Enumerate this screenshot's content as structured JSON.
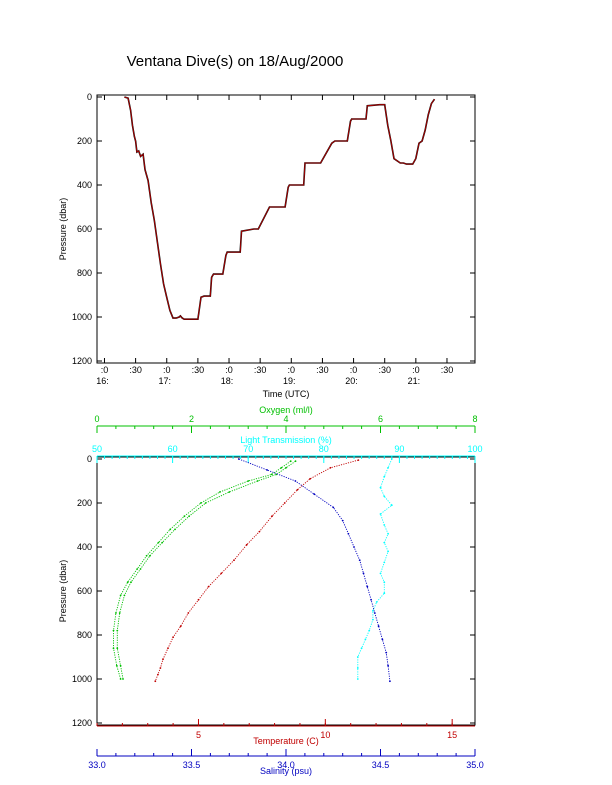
{
  "title": "Ventana Dive(s) on 18/Aug/2000",
  "chart_data": [
    {
      "type": "line",
      "xlabel": "Time (UTC)",
      "ylabel": "Pressure (dbar)",
      "ylim": [
        1200,
        0
      ],
      "yticks": [
        "0",
        "200",
        "400",
        "600",
        "800",
        "1000",
        "1200"
      ],
      "xticks": [
        {
          "minute": ":0",
          "hour": "16:"
        },
        {
          "minute": ":30",
          "hour": ""
        },
        {
          "minute": ":0",
          "hour": "17:"
        },
        {
          "minute": ":30",
          "hour": ""
        },
        {
          "minute": ":0",
          "hour": "18:"
        },
        {
          "minute": ":30",
          "hour": ""
        },
        {
          "minute": ":0",
          "hour": "19:"
        },
        {
          "minute": ":30",
          "hour": ""
        },
        {
          "minute": ":0",
          "hour": "20:"
        },
        {
          "minute": ":30",
          "hour": ""
        },
        {
          "minute": ":0",
          "hour": "21:"
        },
        {
          "minute": ":30",
          "hour": ""
        }
      ],
      "series": [
        {
          "color": "#c00000",
          "x": [
            16.32,
            16.38,
            16.42,
            16.45,
            16.48,
            16.5,
            16.52,
            16.55,
            16.58,
            16.62,
            16.65,
            16.7,
            16.75,
            16.8,
            16.85,
            16.9,
            16.95,
            17.0,
            17.05,
            17.1,
            17.15,
            17.2,
            17.22,
            17.25,
            17.28,
            17.35,
            17.4,
            17.45,
            17.5,
            17.55,
            17.6,
            17.65,
            17.7,
            17.72,
            17.75,
            17.78,
            17.9,
            17.95,
            17.97,
            18.15,
            18.18,
            18.2,
            18.4,
            18.45,
            18.47,
            18.65,
            18.7,
            18.72,
            18.9,
            18.95,
            18.97,
            19.15,
            19.2,
            19.22,
            19.4,
            19.45,
            19.47,
            19.65,
            19.7,
            19.72,
            19.9,
            19.95,
            19.97,
            20.15,
            20.2,
            20.22,
            20.42,
            20.45,
            20.5,
            20.55,
            20.6,
            20.65,
            20.75,
            20.8,
            20.85,
            20.9,
            20.95,
            21.0,
            21.05,
            21.1,
            21.15,
            21.2,
            21.25,
            21.3
          ],
          "y": [
            0,
            5,
            60,
            130,
            180,
            200,
            250,
            245,
            270,
            260,
            330,
            380,
            480,
            560,
            660,
            760,
            850,
            910,
            970,
            1005,
            1005,
            1000,
            995,
            1005,
            1010,
            1010,
            1010,
            1010,
            1010,
            910,
            905,
            905,
            905,
            820,
            805,
            805,
            805,
            720,
            705,
            705,
            705,
            610,
            600,
            600,
            600,
            500,
            500,
            500,
            500,
            410,
            400,
            400,
            400,
            300,
            300,
            300,
            300,
            210,
            200,
            200,
            200,
            110,
            100,
            100,
            100,
            40,
            35,
            35,
            35,
            130,
            200,
            280,
            300,
            300,
            305,
            305,
            305,
            280,
            210,
            200,
            150,
            80,
            30,
            10
          ]
        }
      ]
    },
    {
      "type": "scatter",
      "ylabel": "Pressure (dbar)",
      "ylim": [
        1200,
        0
      ],
      "yticks": [
        "0",
        "200",
        "400",
        "600",
        "800",
        "1000",
        "1200"
      ],
      "axes": [
        {
          "label": "Oxygen (ml/l)",
          "position": "top",
          "color": "#00c000",
          "min": 0,
          "max": 8,
          "ticks": [
            "0",
            "2",
            "4",
            "6",
            "8"
          ],
          "tickvals": [
            0,
            2,
            4,
            6,
            8
          ]
        },
        {
          "label": "Light Transmission (%)",
          "position": "top",
          "color": "#00ffff",
          "min": 50,
          "max": 100,
          "ticks": [
            "50",
            "60",
            "70",
            "80",
            "90",
            "100"
          ],
          "tickvals": [
            50,
            60,
            70,
            80,
            90,
            100
          ]
        },
        {
          "label": "Temperature (C)",
          "position": "bottom",
          "color": "#c00000",
          "min": 1,
          "max": 15.9,
          "ticks": [
            "5",
            "10",
            "15"
          ],
          "tickvals": [
            5,
            10,
            15
          ]
        },
        {
          "label": "Salinity (psu)",
          "position": "bottom",
          "color": "#0000c0",
          "min": 33.0,
          "max": 35.0,
          "ticks": [
            "33.0",
            "33.5",
            "34.0",
            "34.5",
            "35.0"
          ],
          "tickvals": [
            33.0,
            33.5,
            34.0,
            34.5,
            35.0
          ]
        }
      ],
      "series": [
        {
          "axis": 0,
          "color": "#00c000",
          "x": [
            4.1,
            3.9,
            3.7,
            3.2,
            2.6,
            2.2,
            1.85,
            1.55,
            1.3,
            1.05,
            0.85,
            0.65,
            0.5,
            0.4,
            0.35,
            0.35,
            0.42,
            0.5
          ],
          "y": [
            10,
            40,
            70,
            100,
            150,
            200,
            260,
            320,
            380,
            440,
            500,
            560,
            620,
            700,
            780,
            860,
            940,
            1000
          ],
          "x2": [
            4.2,
            4.0,
            3.8,
            3.4,
            2.8,
            2.3,
            1.95,
            1.65,
            1.38,
            1.12,
            0.92,
            0.72,
            0.58,
            0.48,
            0.43,
            0.43,
            0.5,
            0.55
          ],
          "y2": [
            10,
            40,
            70,
            100,
            150,
            200,
            260,
            320,
            380,
            440,
            500,
            560,
            620,
            700,
            780,
            860,
            940,
            1000
          ]
        },
        {
          "axis": 1,
          "color": "#00ffff",
          "x": [
            89,
            88.5,
            88,
            87.5,
            88,
            89,
            87.5,
            88,
            88.5,
            88,
            88.5,
            88,
            87.5,
            88,
            88,
            87,
            86.5,
            86.5,
            86,
            85.5,
            85,
            84.5,
            84.5,
            84.5
          ],
          "y": [
            0,
            40,
            80,
            130,
            170,
            210,
            250,
            300,
            340,
            380,
            420,
            470,
            520,
            560,
            610,
            650,
            690,
            730,
            780,
            820,
            860,
            900,
            950,
            1000
          ]
        },
        {
          "axis": 2,
          "color": "#c00000",
          "x": [
            11.3,
            10.2,
            9.4,
            8.9,
            8.4,
            7.9,
            7.4,
            6.9,
            6.4,
            5.9,
            5.4,
            5.0,
            4.6,
            4.3,
            4.0,
            3.8,
            3.6,
            3.5,
            3.4,
            3.3
          ],
          "y": [
            5,
            40,
            90,
            140,
            200,
            260,
            330,
            390,
            460,
            520,
            580,
            640,
            700,
            760,
            810,
            860,
            910,
            950,
            980,
            1010
          ]
        },
        {
          "axis": 3,
          "color": "#0000c0",
          "x": [
            33.75,
            33.9,
            34.05,
            34.15,
            34.25,
            34.3,
            34.33,
            34.36,
            34.39,
            34.41,
            34.43,
            34.45,
            34.47,
            34.49,
            34.51,
            34.53,
            34.54,
            34.55
          ],
          "y": [
            0,
            50,
            100,
            160,
            220,
            280,
            340,
            400,
            460,
            520,
            580,
            640,
            700,
            760,
            820,
            880,
            940,
            1010
          ]
        }
      ]
    }
  ]
}
